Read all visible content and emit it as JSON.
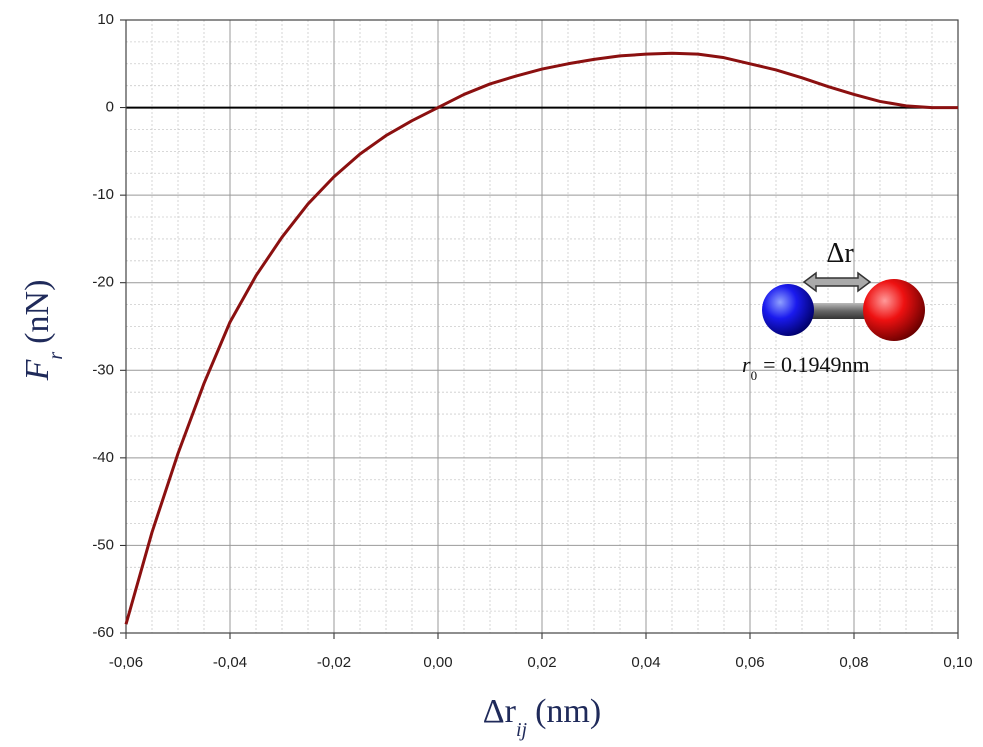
{
  "chart_data": {
    "type": "line",
    "x_label": {
      "symbol": "Δr",
      "sub": "ij",
      "unit": "(nm)"
    },
    "y_label": {
      "symbol": "F",
      "sub": "r",
      "unit": "(nN)"
    },
    "inset": {
      "arrow_label": "Δr",
      "r_symbol": "r",
      "r_sub": "0",
      "r_text": "= 0.1949nm"
    },
    "x": [
      -0.06,
      -0.055,
      -0.05,
      -0.045,
      -0.04,
      -0.035,
      -0.03,
      -0.025,
      -0.02,
      -0.015,
      -0.01,
      -0.005,
      0,
      0.005,
      0.01,
      0.015,
      0.02,
      0.025,
      0.03,
      0.035,
      0.04,
      0.045,
      0.05,
      0.055,
      0.06,
      0.065,
      0.07,
      0.075,
      0.08,
      0.085,
      0.09,
      0.095,
      0.1
    ],
    "series": [
      {
        "color": "#8b1010",
        "values": [
          -59,
          -48.5,
          -39.5,
          -31.5,
          -24.5,
          -19.2,
          -14.8,
          -11.0,
          -7.9,
          -5.3,
          -3.2,
          -1.5,
          0,
          1.5,
          2.7,
          3.6,
          4.4,
          5.0,
          5.5,
          5.9,
          6.1,
          6.2,
          6.1,
          5.7,
          5.0,
          4.3,
          3.4,
          2.4,
          1.5,
          0.7,
          0.2,
          0.0,
          0.0
        ]
      }
    ],
    "xlim": [
      -0.06,
      0.1
    ],
    "xticks": [
      {
        "value": -0.06,
        "label": "-0,06"
      },
      {
        "value": -0.04,
        "label": "-0,04"
      },
      {
        "value": -0.02,
        "label": "-0,02"
      },
      {
        "value": 0,
        "label": "0,00"
      },
      {
        "value": 0.02,
        "label": "0,02"
      },
      {
        "value": 0.04,
        "label": "0,04"
      },
      {
        "value": 0.06,
        "label": "0,06"
      },
      {
        "value": 0.08,
        "label": "0,08"
      },
      {
        "value": 0.1,
        "label": "0,10"
      }
    ],
    "ylim": [
      -60,
      10
    ],
    "yticks": [
      10,
      0,
      -10,
      -20,
      -30,
      -40,
      -50,
      -60
    ],
    "grid": true,
    "minor_grid": true,
    "zero_line": true
  }
}
